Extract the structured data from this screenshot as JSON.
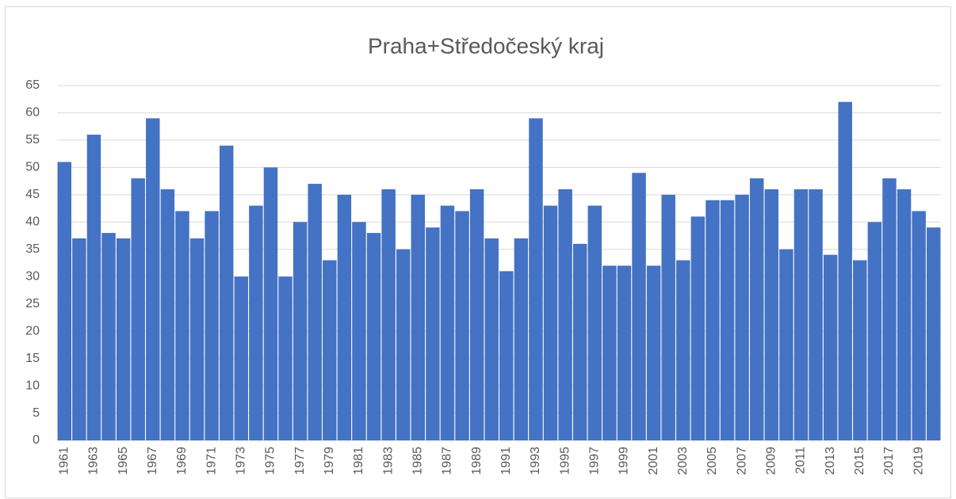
{
  "chart_data": {
    "type": "bar",
    "title": "Praha+Středočeský kraj",
    "categories": [
      "1961",
      null,
      "1963",
      null,
      "1965",
      null,
      "1967",
      null,
      "1969",
      null,
      "1971",
      null,
      "1973",
      null,
      "1975",
      null,
      "1977",
      null,
      "1979",
      null,
      "1981",
      null,
      "1983",
      null,
      "1985",
      null,
      "1987",
      null,
      "1989",
      null,
      "1991",
      null,
      "1993",
      null,
      "1995",
      null,
      "1997",
      null,
      "1999",
      null,
      "2001",
      null,
      "2003",
      null,
      "2005",
      null,
      "2007",
      null,
      "2009",
      null,
      "2011",
      null,
      "2013",
      null,
      "2015",
      null,
      "2017",
      null,
      "2019",
      null
    ],
    "values": [
      51,
      37,
      56,
      38,
      37,
      48,
      59,
      46,
      42,
      37,
      42,
      54,
      30,
      43,
      50,
      30,
      40,
      47,
      33,
      45,
      40,
      38,
      46,
      35,
      45,
      39,
      43,
      42,
      46,
      37,
      31,
      37,
      59,
      43,
      46,
      36,
      43,
      32,
      32,
      49,
      32,
      45,
      33,
      41,
      44,
      44,
      45,
      48,
      46,
      35,
      46,
      46,
      34,
      62,
      33,
      40,
      48,
      46,
      42,
      39
    ],
    "color": "#4472c4",
    "ylim": [
      0,
      65
    ],
    "yticks": [
      0,
      5,
      10,
      15,
      20,
      25,
      30,
      35,
      40,
      45,
      50,
      55,
      60,
      65
    ],
    "grid": true
  }
}
